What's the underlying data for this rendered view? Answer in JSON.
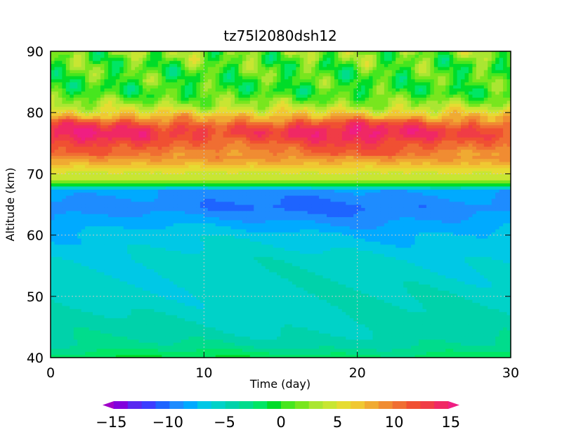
{
  "chart_data": {
    "type": "heatmap",
    "title": "tz75l2080dsh12",
    "xlabel": "Time (day)",
    "ylabel": "Altitude (km)",
    "xlim": [
      0,
      30
    ],
    "ylim": [
      40,
      90
    ],
    "xticks": [
      "0",
      "10",
      "20",
      "30"
    ],
    "yticks": [
      "40",
      "50",
      "60",
      "70",
      "80",
      "90"
    ],
    "grid": true,
    "colorbar": {
      "position": "bottom",
      "min": -16,
      "max": 16,
      "ticks": [
        "−15",
        "−10",
        "−5",
        "0",
        "5",
        "10",
        "15"
      ],
      "tick_values": [
        -15,
        -10,
        -5,
        0,
        5,
        10,
        15
      ],
      "colors": [
        "#a000c8",
        "#8200dc",
        "#5a28f0",
        "#3c3cff",
        "#1e64ff",
        "#1e8cff",
        "#00aaff",
        "#00c8e6",
        "#00d2c8",
        "#00d2aa",
        "#00dc8c",
        "#00e664",
        "#00dc28",
        "#46e61e",
        "#78e61e",
        "#aae632",
        "#c8e632",
        "#e6dc32",
        "#f0c832",
        "#f0aa32",
        "#f08c32",
        "#f06e32",
        "#f05032",
        "#f03c46",
        "#f02864",
        "#f01e82"
      ],
      "extend": "both"
    },
    "profile": {
      "altitude": [
        40,
        41,
        42,
        44,
        48,
        52,
        56,
        60,
        63,
        64.5,
        66,
        67.5,
        68.3,
        69,
        70,
        71,
        72,
        73,
        74,
        75,
        76,
        77,
        78,
        79,
        80,
        81,
        82,
        83,
        84,
        85,
        86,
        88,
        90
      ],
      "value": [
        -1.5,
        -2.5,
        -3.8,
        -4.5,
        -5.2,
        -5.5,
        -5.8,
        -7.0,
        -8.8,
        -9.8,
        -9.2,
        -8.6,
        0.5,
        3.5,
        4.5,
        6.0,
        8.0,
        9.5,
        10.5,
        11.5,
        13.0,
        13.5,
        12.0,
        9.0,
        6.0,
        3.5,
        2.0,
        0.5,
        0.0,
        0.5,
        0.5,
        1.0,
        2.0
      ]
    }
  }
}
